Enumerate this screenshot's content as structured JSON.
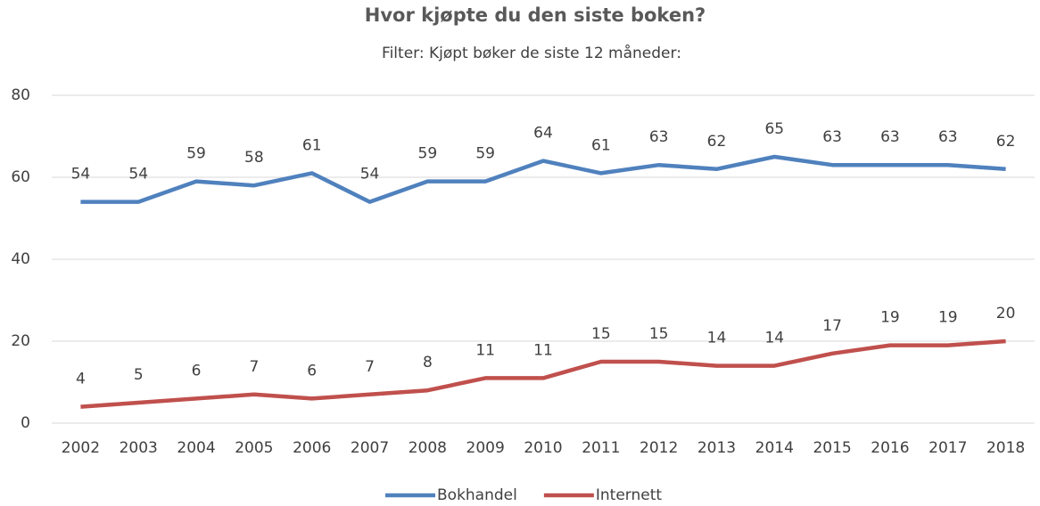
{
  "chart_data": {
    "type": "line",
    "title": "Hvor kjøpte du den siste boken?",
    "subtitle": "Filter: Kjøpt bøker de siste 12 måneder:",
    "categories": [
      "2002",
      "2003",
      "2004",
      "2005",
      "2006",
      "2007",
      "2008",
      "2009",
      "2010",
      "2011",
      "2012",
      "2013",
      "2014",
      "2015",
      "2016",
      "2017",
      "2018"
    ],
    "series": [
      {
        "name": "Bokhandel",
        "color": "#4f81bd",
        "values": [
          54,
          54,
          59,
          58,
          61,
          54,
          59,
          59,
          64,
          61,
          63,
          62,
          65,
          63,
          63,
          63,
          62
        ]
      },
      {
        "name": "Internett",
        "color": "#c0504d",
        "values": [
          4,
          5,
          6,
          7,
          6,
          7,
          8,
          11,
          11,
          15,
          15,
          14,
          14,
          17,
          19,
          19,
          20
        ]
      }
    ],
    "ylim": [
      0,
      80
    ],
    "yticks": [
      0,
      20,
      40,
      60,
      80
    ],
    "grid": true,
    "legend": "bottom"
  }
}
